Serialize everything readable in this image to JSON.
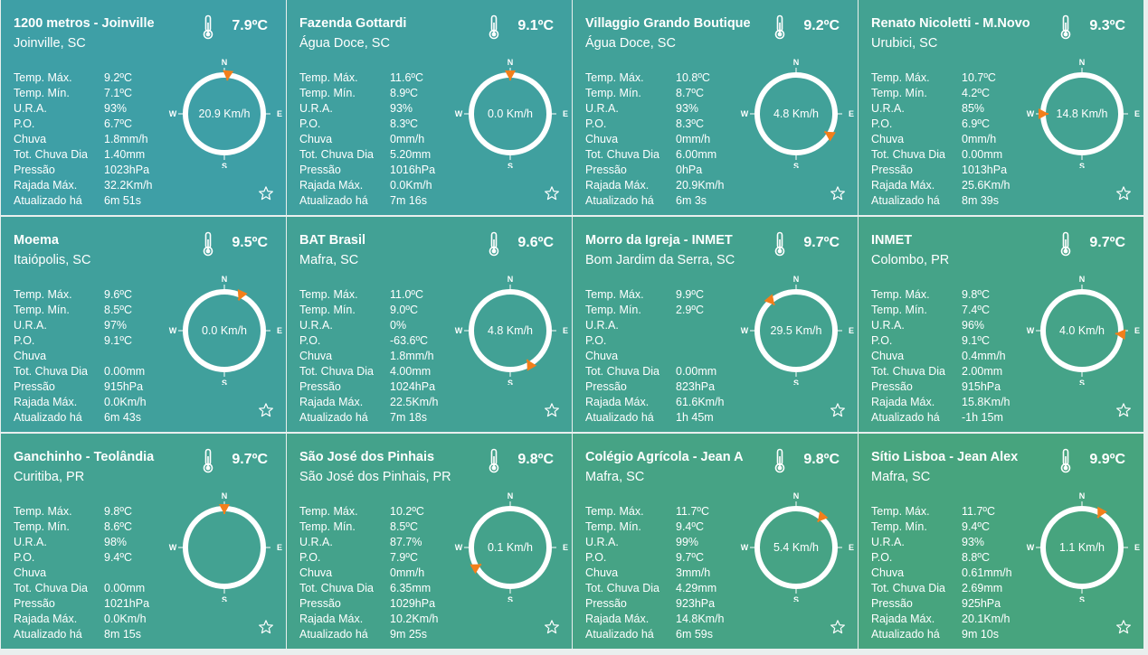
{
  "labels": {
    "temp_max": "Temp. Máx.",
    "temp_min": "Temp. Mín.",
    "ura": "U.R.A.",
    "po": "P.O.",
    "chuva": "Chuva",
    "tot_chuva": "Tot. Chuva Dia",
    "pressao": "Pressão",
    "rajada": "Rajada Máx.",
    "atualizado": "Atualizado há",
    "compass_n": "N",
    "compass_s": "S",
    "compass_e": "E",
    "compass_w": "W"
  },
  "colors": {
    "card_top_left": "#3e9fa6",
    "card_bottom_right": "#47a47e",
    "wind_arrow": "#f27f1b"
  },
  "icons": {
    "thermometer": "thermometer-icon",
    "favorite": "star-icon"
  },
  "stations": [
    {
      "name": "1200 metros - Joinville",
      "city": "Joinville, SC",
      "temp": "7.9ºC",
      "temp_max": "9.2ºC",
      "temp_min": "7.1ºC",
      "ura": "93%",
      "po": "6.7ºC",
      "chuva": "1.8mm/h",
      "tot_chuva": "1.40mm",
      "pressao": "1023hPa",
      "rajada": "32.2Km/h",
      "atualizado": "6m 51s",
      "wind_speed": "20.9 Km/h",
      "wind_dir_deg": 5
    },
    {
      "name": "Fazenda Gottardi",
      "city": "Água Doce, SC",
      "temp": "9.1ºC",
      "temp_max": "11.6ºC",
      "temp_min": "8.9ºC",
      "ura": "93%",
      "po": "8.3ºC",
      "chuva": "0mm/h",
      "tot_chuva": "5.20mm",
      "pressao": "1016hPa",
      "rajada": "0.0Km/h",
      "atualizado": "7m 16s",
      "wind_speed": "0.0 Km/h",
      "wind_dir_deg": 0
    },
    {
      "name": "Villaggio Grando Boutique",
      "city": "Água Doce, SC",
      "temp": "9.2ºC",
      "temp_max": "10.8ºC",
      "temp_min": "8.7ºC",
      "ura": "93%",
      "po": "8.3ºC",
      "chuva": "0mm/h",
      "tot_chuva": "6.00mm",
      "pressao": "0hPa",
      "rajada": "20.9Km/h",
      "atualizado": "6m 3s",
      "wind_speed": "4.8 Km/h",
      "wind_dir_deg": 122
    },
    {
      "name": "Renato Nicoletti - M.Novo",
      "city": "Urubici, SC",
      "temp": "9.3ºC",
      "temp_max": "10.7ºC",
      "temp_min": "4.2ºC",
      "ura": "85%",
      "po": "6.9ºC",
      "chuva": "0mm/h",
      "tot_chuva": "0.00mm",
      "pressao": "1013hPa",
      "rajada": "25.6Km/h",
      "atualizado": "8m 39s",
      "wind_speed": "14.8 Km/h",
      "wind_dir_deg": 270
    },
    {
      "name": "Moema",
      "city": "Itaiópolis, SC",
      "temp": "9.5ºC",
      "temp_max": "9.6ºC",
      "temp_min": "8.5ºC",
      "ura": "97%",
      "po": "9.1ºC",
      "chuva": "",
      "tot_chuva": "0.00mm",
      "pressao": "915hPa",
      "rajada": "0.0Km/h",
      "atualizado": "6m 43s",
      "wind_speed": "0.0 Km/h",
      "wind_dir_deg": 25
    },
    {
      "name": "BAT Brasil",
      "city": "Mafra, SC",
      "temp": "9.6ºC",
      "temp_max": "11.0ºC",
      "temp_min": "9.0ºC",
      "ura": "0%",
      "po": "-63.6ºC",
      "chuva": "1.8mm/h",
      "tot_chuva": "4.00mm",
      "pressao": "1024hPa",
      "rajada": "22.5Km/h",
      "atualizado": "7m 18s",
      "wind_speed": "4.8 Km/h",
      "wind_dir_deg": 150
    },
    {
      "name": "Morro da Igreja - INMET",
      "city": "Bom Jardim da Serra, SC",
      "temp": "9.7ºC",
      "temp_max": "9.9ºC",
      "temp_min": "2.9ºC",
      "ura": "",
      "po": "",
      "chuva": "",
      "tot_chuva": "0.00mm",
      "pressao": "823hPa",
      "rajada": "61.6Km/h",
      "atualizado": "1h 45m",
      "wind_speed": "29.5 Km/h",
      "wind_dir_deg": 320
    },
    {
      "name": "INMET",
      "city": "Colombo, PR",
      "temp": "9.7ºC",
      "temp_max": "9.8ºC",
      "temp_min": "7.4ºC",
      "ura": "96%",
      "po": "9.1ºC",
      "chuva": "0.4mm/h",
      "tot_chuva": "2.00mm",
      "pressao": "915hPa",
      "rajada": "15.8Km/h",
      "atualizado": "-1h 15m",
      "wind_speed": "4.0 Km/h",
      "wind_dir_deg": 95
    },
    {
      "name": "Ganchinho - Teolândia",
      "city": "Curitiba, PR",
      "temp": "9.7ºC",
      "temp_max": "9.8ºC",
      "temp_min": "8.6ºC",
      "ura": "98%",
      "po": "9.4ºC",
      "chuva": "",
      "tot_chuva": "0.00mm",
      "pressao": "1021hPa",
      "rajada": "0.0Km/h",
      "atualizado": "8m 15s",
      "wind_speed": "",
      "wind_dir_deg": 0
    },
    {
      "name": "São José dos Pinhais",
      "city": "São José dos Pinhais, PR",
      "temp": "9.8ºC",
      "temp_max": "10.2ºC",
      "temp_min": "8.5ºC",
      "ura": "87.7%",
      "po": "7.9ºC",
      "chuva": "0mm/h",
      "tot_chuva": "6.35mm",
      "pressao": "1029hPa",
      "rajada": "10.2Km/h",
      "atualizado": "9m 25s",
      "wind_speed": "0.1 Km/h",
      "wind_dir_deg": 240
    },
    {
      "name": "Colégio Agrícola - Jean A",
      "city": "Mafra, SC",
      "temp": "9.8ºC",
      "temp_max": "11.7ºC",
      "temp_min": "9.4ºC",
      "ura": "99%",
      "po": "9.7ºC",
      "chuva": "3mm/h",
      "tot_chuva": "4.29mm",
      "pressao": "923hPa",
      "rajada": "14.8Km/h",
      "atualizado": "6m 59s",
      "wind_speed": "5.4 Km/h",
      "wind_dir_deg": 40
    },
    {
      "name": "Sítio Lisboa - Jean Alex",
      "city": "Mafra, SC",
      "temp": "9.9ºC",
      "temp_max": "11.7ºC",
      "temp_min": "9.4ºC",
      "ura": "93%",
      "po": "8.8ºC",
      "chuva": "0.61mm/h",
      "tot_chuva": "2.69mm",
      "pressao": "925hPa",
      "rajada": "20.1Km/h",
      "atualizado": "9m 10s",
      "wind_speed": "1.1 Km/h",
      "wind_dir_deg": 28
    }
  ]
}
